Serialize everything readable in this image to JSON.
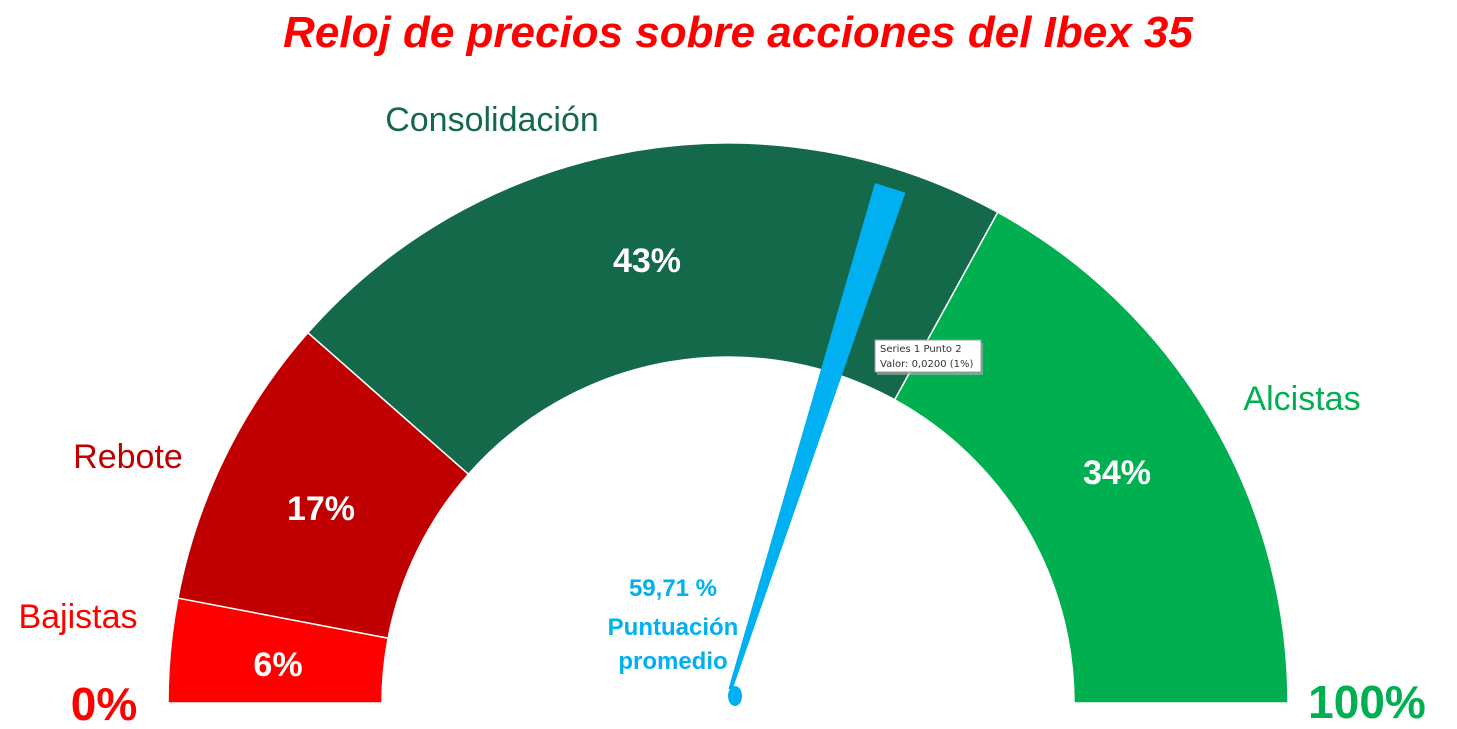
{
  "chart_data": {
    "type": "gauge",
    "title": "Reloj de precios sobre acciones del Ibex 35",
    "categories": [
      "Bajistas",
      "Rebote",
      "Consolidación",
      "Alcistas"
    ],
    "values": [
      6,
      17,
      43,
      34
    ],
    "value_labels": [
      "6%",
      "17%",
      "43%",
      "34%"
    ],
    "range_labels": {
      "min": "0%",
      "max": "100%"
    },
    "pointer": {
      "value": 59.71,
      "value_label": "59,71 %",
      "caption_line1": "Puntuación",
      "caption_line2": "promedio"
    },
    "tooltip": {
      "line1": "Series 1 Punto 2",
      "line2": "Valor: 0,0200 (1%)"
    }
  },
  "colors": {
    "title": "#ff0000",
    "bajistas": "#ff0000",
    "rebote": "#c00000",
    "consolidacion": "#13694a",
    "alcistas": "#00b050",
    "pointer": "#00b0f0",
    "min_label": "#ff0000",
    "max_label": "#00b050"
  }
}
